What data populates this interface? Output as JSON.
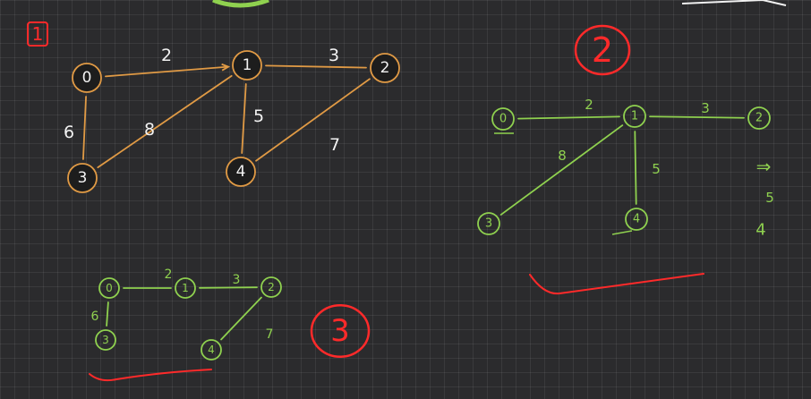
{
  "colors": {
    "background": "#2b2b2d",
    "white": "#f2f2f2",
    "orange": "#e09a45",
    "green": "#8fd14f",
    "red": "#ff2a2a"
  },
  "graphs": [
    {
      "id": "graph-1",
      "label": "1",
      "color": "orange",
      "node_fill": "#1d1d1d",
      "text_color": "white",
      "nodes": [
        {
          "id": "0",
          "label": "0"
        },
        {
          "id": "1",
          "label": "1"
        },
        {
          "id": "2",
          "label": "2"
        },
        {
          "id": "3",
          "label": "3"
        },
        {
          "id": "4",
          "label": "4"
        }
      ],
      "edges": [
        {
          "from": "0",
          "to": "1",
          "weight": "2",
          "directed": true
        },
        {
          "from": "1",
          "to": "2",
          "weight": "3",
          "directed": false
        },
        {
          "from": "0",
          "to": "3",
          "weight": "6",
          "directed": false
        },
        {
          "from": "3",
          "to": "1",
          "weight": "8",
          "directed": false
        },
        {
          "from": "1",
          "to": "4",
          "weight": "5",
          "directed": false
        },
        {
          "from": "4",
          "to": "2",
          "weight": "7",
          "directed": false
        }
      ]
    },
    {
      "id": "graph-2",
      "label": "2",
      "color": "green",
      "node_fill": "none",
      "text_color": "green",
      "nodes": [
        {
          "id": "0",
          "label": "0"
        },
        {
          "id": "1",
          "label": "1"
        },
        {
          "id": "2",
          "label": "2"
        },
        {
          "id": "3",
          "label": "3"
        },
        {
          "id": "4",
          "label": "4"
        }
      ],
      "edges": [
        {
          "from": "0",
          "to": "1",
          "weight": "2"
        },
        {
          "from": "1",
          "to": "2",
          "weight": "3"
        },
        {
          "from": "1",
          "to": "3",
          "weight": "8"
        },
        {
          "from": "1",
          "to": "4",
          "weight": "5"
        }
      ],
      "notes": [
        "⇒",
        "5",
        "4"
      ]
    },
    {
      "id": "graph-3",
      "label": "3",
      "color": "green",
      "node_fill": "none",
      "text_color": "green",
      "nodes": [
        {
          "id": "0",
          "label": "0"
        },
        {
          "id": "1",
          "label": "1"
        },
        {
          "id": "2",
          "label": "2"
        },
        {
          "id": "3",
          "label": "3"
        },
        {
          "id": "4",
          "label": "4"
        }
      ],
      "edges": [
        {
          "from": "0",
          "to": "1",
          "weight": "2"
        },
        {
          "from": "1",
          "to": "2",
          "weight": "3"
        },
        {
          "from": "0",
          "to": "3",
          "weight": "6"
        },
        {
          "from": "4",
          "to": "2",
          "weight": "7"
        }
      ]
    }
  ]
}
